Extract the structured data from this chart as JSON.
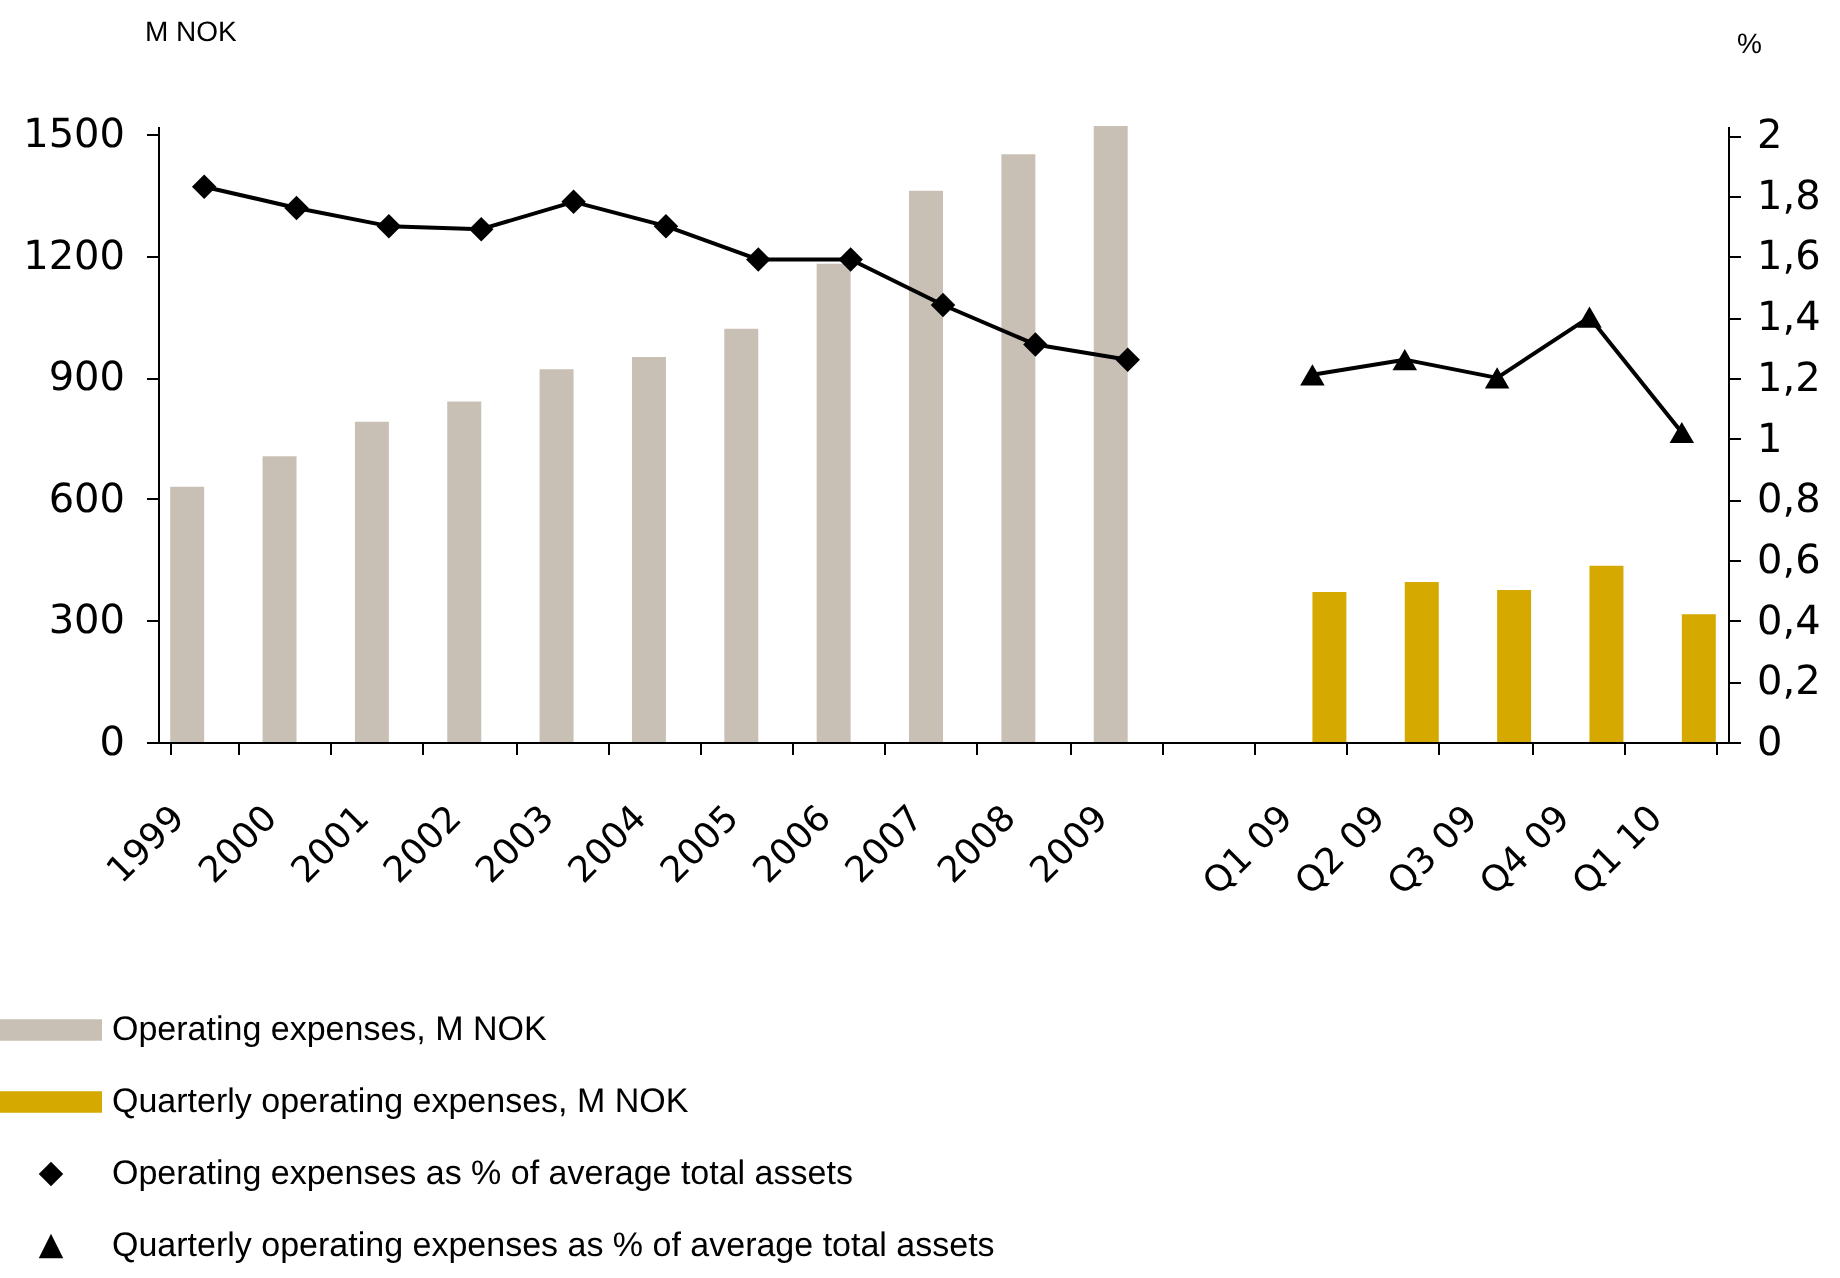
{
  "chart_data": {
    "type": "bar",
    "ylabel": "M NOK",
    "y2label": "%",
    "categories": [
      "1999",
      "2000",
      "2001",
      "2002",
      "2003",
      "2004",
      "2005",
      "2006",
      "2007",
      "2008",
      "2009",
      null,
      "Q1 09",
      "Q2 09",
      "Q3 09",
      "Q4 09",
      "Q1 10"
    ],
    "series": [
      {
        "name": "Operating expenses, M NOK",
        "color": "#c9c0b5",
        "values": [
          630,
          705,
          790,
          840,
          920,
          950,
          1020,
          1180,
          1360,
          1450,
          1520,
          null,
          null,
          null,
          null,
          null,
          null
        ]
      },
      {
        "name": "Quarterly operating expenses, M NOK",
        "color": "#d6a900",
        "values": [
          null,
          null,
          null,
          null,
          null,
          null,
          null,
          null,
          null,
          null,
          null,
          null,
          370,
          395,
          375,
          435,
          315
        ]
      },
      {
        "name": "Operating expenses as % of average total assets",
        "type": "line",
        "axis": "y2",
        "color": "#000000",
        "marker": "diamond",
        "values": [
          1.83,
          1.76,
          1.7,
          1.69,
          1.78,
          1.7,
          1.59,
          1.59,
          1.44,
          1.31,
          1.26,
          null,
          null,
          null,
          null,
          null,
          null
        ]
      },
      {
        "name": "Quarterly operating expenses as % of average total assets",
        "type": "line",
        "axis": "y2",
        "color": "#000000",
        "marker": "triangle",
        "values": [
          null,
          null,
          null,
          null,
          null,
          null,
          null,
          null,
          null,
          null,
          null,
          null,
          1.21,
          1.26,
          1.2,
          1.4,
          1.02
        ]
      }
    ],
    "ylim": [
      0,
      1520
    ],
    "yticks": [
      0,
      300,
      600,
      900,
      1200,
      1500
    ],
    "y2lim": [
      0,
      2.03
    ],
    "y2ticks": [
      0,
      {
        "value": 0.2,
        "label": "0,2"
      },
      {
        "value": 0.4,
        "label": "0,4"
      },
      {
        "value": 0.6,
        "label": "0,6"
      },
      {
        "value": 0.8,
        "label": "0,8"
      },
      1,
      {
        "value": 1.2,
        "label": "1,2"
      },
      {
        "value": 1.4,
        "label": "1,4"
      },
      {
        "value": 1.6,
        "label": "1,6"
      },
      {
        "value": 1.8,
        "label": "1,8"
      },
      2
    ],
    "grid": false,
    "legend": "bottom"
  }
}
